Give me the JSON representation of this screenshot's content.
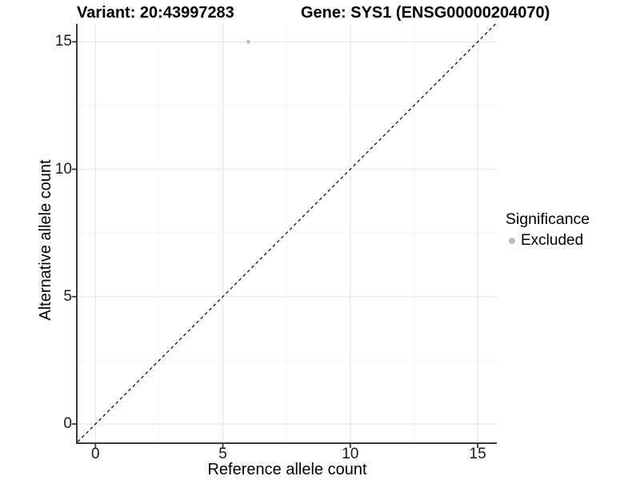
{
  "chart_data": {
    "type": "scatter",
    "title_left": "Variant: 20:43997283",
    "title_right": "Gene: SYS1 (ENSG00000204070)",
    "xlabel": "Reference allele count",
    "ylabel": "Alternative allele count",
    "xlim": [
      -0.7,
      15.75
    ],
    "ylim": [
      -0.72,
      15.7
    ],
    "x_ticks": [
      0,
      5,
      10,
      15
    ],
    "y_ticks": [
      0,
      5,
      10,
      15
    ],
    "x_minor_ticks": [
      2.5,
      7.5,
      12.5
    ],
    "y_minor_ticks": [
      2.5,
      7.5,
      12.5
    ],
    "grid": "major-and-minor",
    "legend_position": "right",
    "reference_line": {
      "type": "identity y=x",
      "style": "dashed",
      "color": "#000000"
    },
    "series": [
      {
        "name": "Excluded",
        "color": "#bdbdbd",
        "points": [
          {
            "x": 6,
            "y": 15
          }
        ]
      }
    ],
    "legend": {
      "title": "Significance",
      "entries": [
        {
          "label": "Excluded",
          "color": "#bdbdbd",
          "marker": "circle"
        }
      ]
    },
    "colors": {
      "major_grid": "#e8e8e8",
      "minor_grid": "#f4f4f4",
      "axis_line": "#3a3a3a",
      "tick_text": "#1a1a1a",
      "point": "#bdbdbd"
    }
  }
}
